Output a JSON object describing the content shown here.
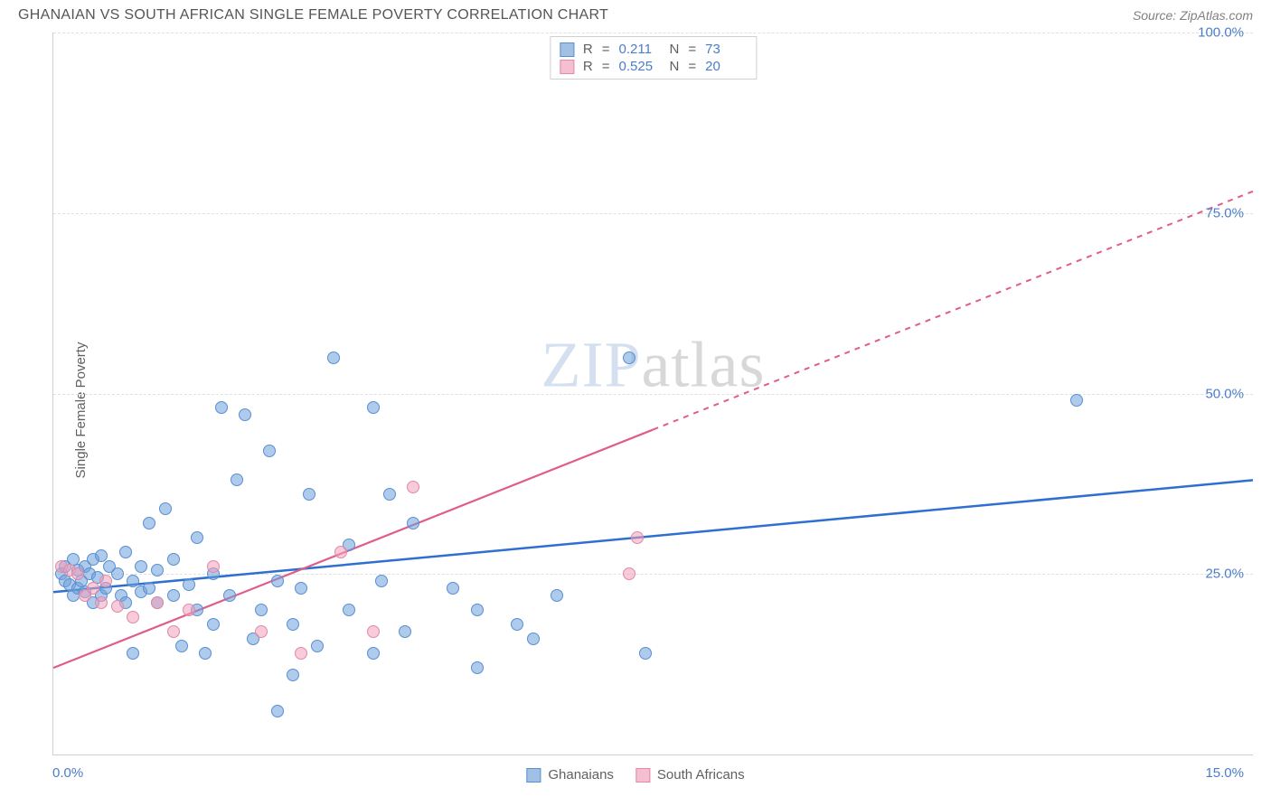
{
  "header": {
    "title": "GHANAIAN VS SOUTH AFRICAN SINGLE FEMALE POVERTY CORRELATION CHART",
    "source": "Source: ZipAtlas.com"
  },
  "chart": {
    "type": "scatter",
    "ylabel": "Single Female Poverty",
    "xlim": [
      0,
      15
    ],
    "ylim": [
      0,
      100
    ],
    "xtick_labels": [
      "0.0%",
      "15.0%"
    ],
    "ytick_labels": [
      "25.0%",
      "50.0%",
      "75.0%",
      "100.0%"
    ],
    "ytick_positions": [
      25,
      50,
      75,
      100
    ],
    "grid_color": "#e0e0e0",
    "axis_color": "#d0d0d0",
    "background_color": "#ffffff",
    "series": [
      {
        "name": "Ghanaians",
        "r": "0.211",
        "n": "73",
        "marker_color_fill": "rgba(110,160,220,0.55)",
        "marker_color_stroke": "#5a8fd0",
        "trend_color": "#2f6fd0",
        "trend_dash": "none",
        "trend": {
          "x0": 0,
          "y0": 22.5,
          "x1": 15,
          "y1": 38
        },
        "points": [
          [
            0.1,
            25
          ],
          [
            0.15,
            26
          ],
          [
            0.15,
            24
          ],
          [
            0.2,
            23.5
          ],
          [
            0.25,
            27
          ],
          [
            0.25,
            22
          ],
          [
            0.3,
            25.5
          ],
          [
            0.3,
            23
          ],
          [
            0.35,
            24
          ],
          [
            0.4,
            26
          ],
          [
            0.4,
            22.5
          ],
          [
            0.45,
            25
          ],
          [
            0.5,
            27
          ],
          [
            0.5,
            21
          ],
          [
            0.55,
            24.5
          ],
          [
            0.6,
            27.5
          ],
          [
            0.6,
            22
          ],
          [
            0.65,
            23
          ],
          [
            0.7,
            26
          ],
          [
            0.8,
            25
          ],
          [
            0.85,
            22
          ],
          [
            0.9,
            28
          ],
          [
            0.9,
            21
          ],
          [
            1.0,
            24
          ],
          [
            1.0,
            14
          ],
          [
            1.1,
            22.5
          ],
          [
            1.1,
            26
          ],
          [
            1.2,
            32
          ],
          [
            1.2,
            23
          ],
          [
            1.3,
            21
          ],
          [
            1.3,
            25.5
          ],
          [
            1.4,
            34
          ],
          [
            1.5,
            22
          ],
          [
            1.5,
            27
          ],
          [
            1.6,
            15
          ],
          [
            1.7,
            23.5
          ],
          [
            1.8,
            20
          ],
          [
            1.8,
            30
          ],
          [
            1.9,
            14
          ],
          [
            2.0,
            25
          ],
          [
            2.0,
            18
          ],
          [
            2.1,
            48
          ],
          [
            2.2,
            22
          ],
          [
            2.3,
            38
          ],
          [
            2.4,
            47
          ],
          [
            2.5,
            16
          ],
          [
            2.6,
            20
          ],
          [
            2.7,
            42
          ],
          [
            2.8,
            6
          ],
          [
            2.8,
            24
          ],
          [
            3.0,
            18
          ],
          [
            3.0,
            11
          ],
          [
            3.1,
            23
          ],
          [
            3.2,
            36
          ],
          [
            3.3,
            15
          ],
          [
            3.5,
            55
          ],
          [
            3.7,
            20
          ],
          [
            3.7,
            29
          ],
          [
            4.0,
            48
          ],
          [
            4.0,
            14
          ],
          [
            4.1,
            24
          ],
          [
            4.2,
            36
          ],
          [
            4.4,
            17
          ],
          [
            4.5,
            32
          ],
          [
            5.0,
            23
          ],
          [
            5.3,
            20
          ],
          [
            5.3,
            12
          ],
          [
            5.8,
            18
          ],
          [
            6.0,
            16
          ],
          [
            6.3,
            22
          ],
          [
            7.2,
            55
          ],
          [
            7.4,
            14
          ],
          [
            12.8,
            49
          ]
        ]
      },
      {
        "name": "South Africans",
        "r": "0.525",
        "n": "20",
        "marker_color_fill": "rgba(240,160,185,0.55)",
        "marker_color_stroke": "#e089a8",
        "trend_color": "#e05d8a",
        "trend_dash_solid_until_x": 7.5,
        "trend": {
          "x0": 0,
          "y0": 12,
          "x1": 15,
          "y1": 78
        },
        "points": [
          [
            0.1,
            26
          ],
          [
            0.2,
            25.5
          ],
          [
            0.3,
            25
          ],
          [
            0.4,
            22
          ],
          [
            0.5,
            23
          ],
          [
            0.6,
            21
          ],
          [
            0.65,
            24
          ],
          [
            0.8,
            20.5
          ],
          [
            1.0,
            19
          ],
          [
            1.3,
            21
          ],
          [
            1.5,
            17
          ],
          [
            1.7,
            20
          ],
          [
            2.0,
            26
          ],
          [
            2.6,
            17
          ],
          [
            3.1,
            14
          ],
          [
            3.6,
            28
          ],
          [
            4.0,
            17
          ],
          [
            4.5,
            37
          ],
          [
            7.3,
            30
          ],
          [
            7.2,
            25
          ]
        ]
      }
    ]
  },
  "watermark": {
    "zip": "ZIP",
    "atlas": "atlas"
  },
  "legend": {
    "r_label": "R",
    "n_label": "N",
    "eq": "="
  }
}
